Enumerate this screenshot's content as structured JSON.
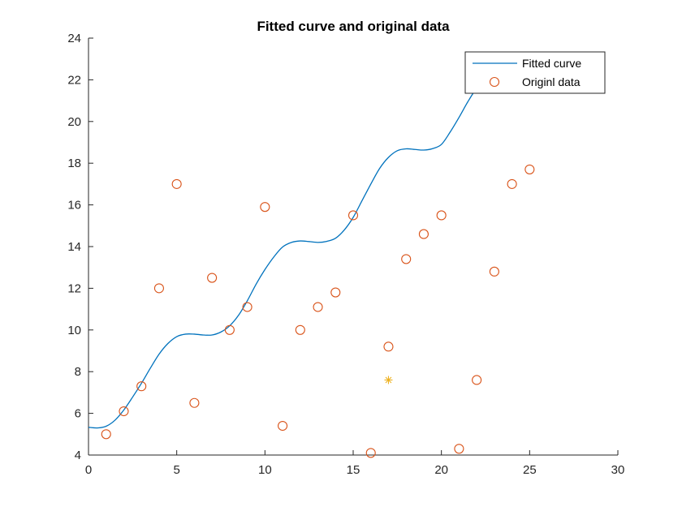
{
  "chart_data": {
    "type": "line",
    "title": "Fitted curve and original data",
    "xlabel": "",
    "ylabel": "",
    "xlim": [
      0,
      30
    ],
    "ylim": [
      4,
      24
    ],
    "xticks": [
      0,
      5,
      10,
      15,
      20,
      25,
      30
    ],
    "yticks": [
      4,
      6,
      8,
      10,
      12,
      14,
      16,
      18,
      20,
      22,
      24
    ],
    "grid": false,
    "legend_position": "top-right",
    "colors": {
      "fitted": "#0072BD",
      "original": "#D95319",
      "highlight": "#EDB120",
      "axis": "#262626"
    },
    "series": [
      {
        "name": "Fitted curve",
        "type": "line",
        "x": [
          0,
          0.5,
          1,
          1.5,
          2,
          2.5,
          3,
          3.5,
          4,
          4.5,
          5,
          5.5,
          6,
          6.5,
          7,
          7.5,
          8,
          8.5,
          9,
          9.5,
          10,
          10.5,
          11,
          11.5,
          12,
          12.5,
          13,
          13.5,
          14,
          14.5,
          15,
          15.5,
          16,
          16.5,
          17,
          17.5,
          18,
          18.5,
          19,
          19.5,
          20,
          20.5,
          21,
          21.5,
          22,
          22.5,
          23
        ],
        "y": [
          5.33,
          5.3,
          5.38,
          5.67,
          6.16,
          6.78,
          7.44,
          8.16,
          8.84,
          9.35,
          9.68,
          9.8,
          9.8,
          9.76,
          9.76,
          9.9,
          10.2,
          10.7,
          11.4,
          12.2,
          12.9,
          13.5,
          13.98,
          14.2,
          14.27,
          14.24,
          14.2,
          14.25,
          14.4,
          14.8,
          15.4,
          16.2,
          17.0,
          17.75,
          18.28,
          18.6,
          18.69,
          18.66,
          18.63,
          18.7,
          18.9,
          19.5,
          20.2,
          20.95,
          21.6,
          22.0,
          22.3
        ]
      },
      {
        "name": "Originl data",
        "type": "scatter",
        "x": [
          1,
          2,
          3,
          4,
          5,
          6,
          7,
          8,
          9,
          10,
          11,
          12,
          13,
          14,
          15,
          16,
          17,
          18,
          19,
          20,
          21,
          22,
          23,
          24,
          25
        ],
        "y": [
          5.0,
          6.1,
          7.3,
          12.0,
          17.0,
          6.5,
          12.5,
          10.0,
          11.1,
          15.9,
          5.4,
          10.0,
          11.1,
          11.8,
          15.5,
          4.1,
          9.2,
          13.4,
          14.6,
          15.5,
          4.3,
          7.6,
          12.8,
          17.0,
          17.7
        ]
      }
    ],
    "highlight_point": {
      "x": 17,
      "y": 7.6
    }
  }
}
